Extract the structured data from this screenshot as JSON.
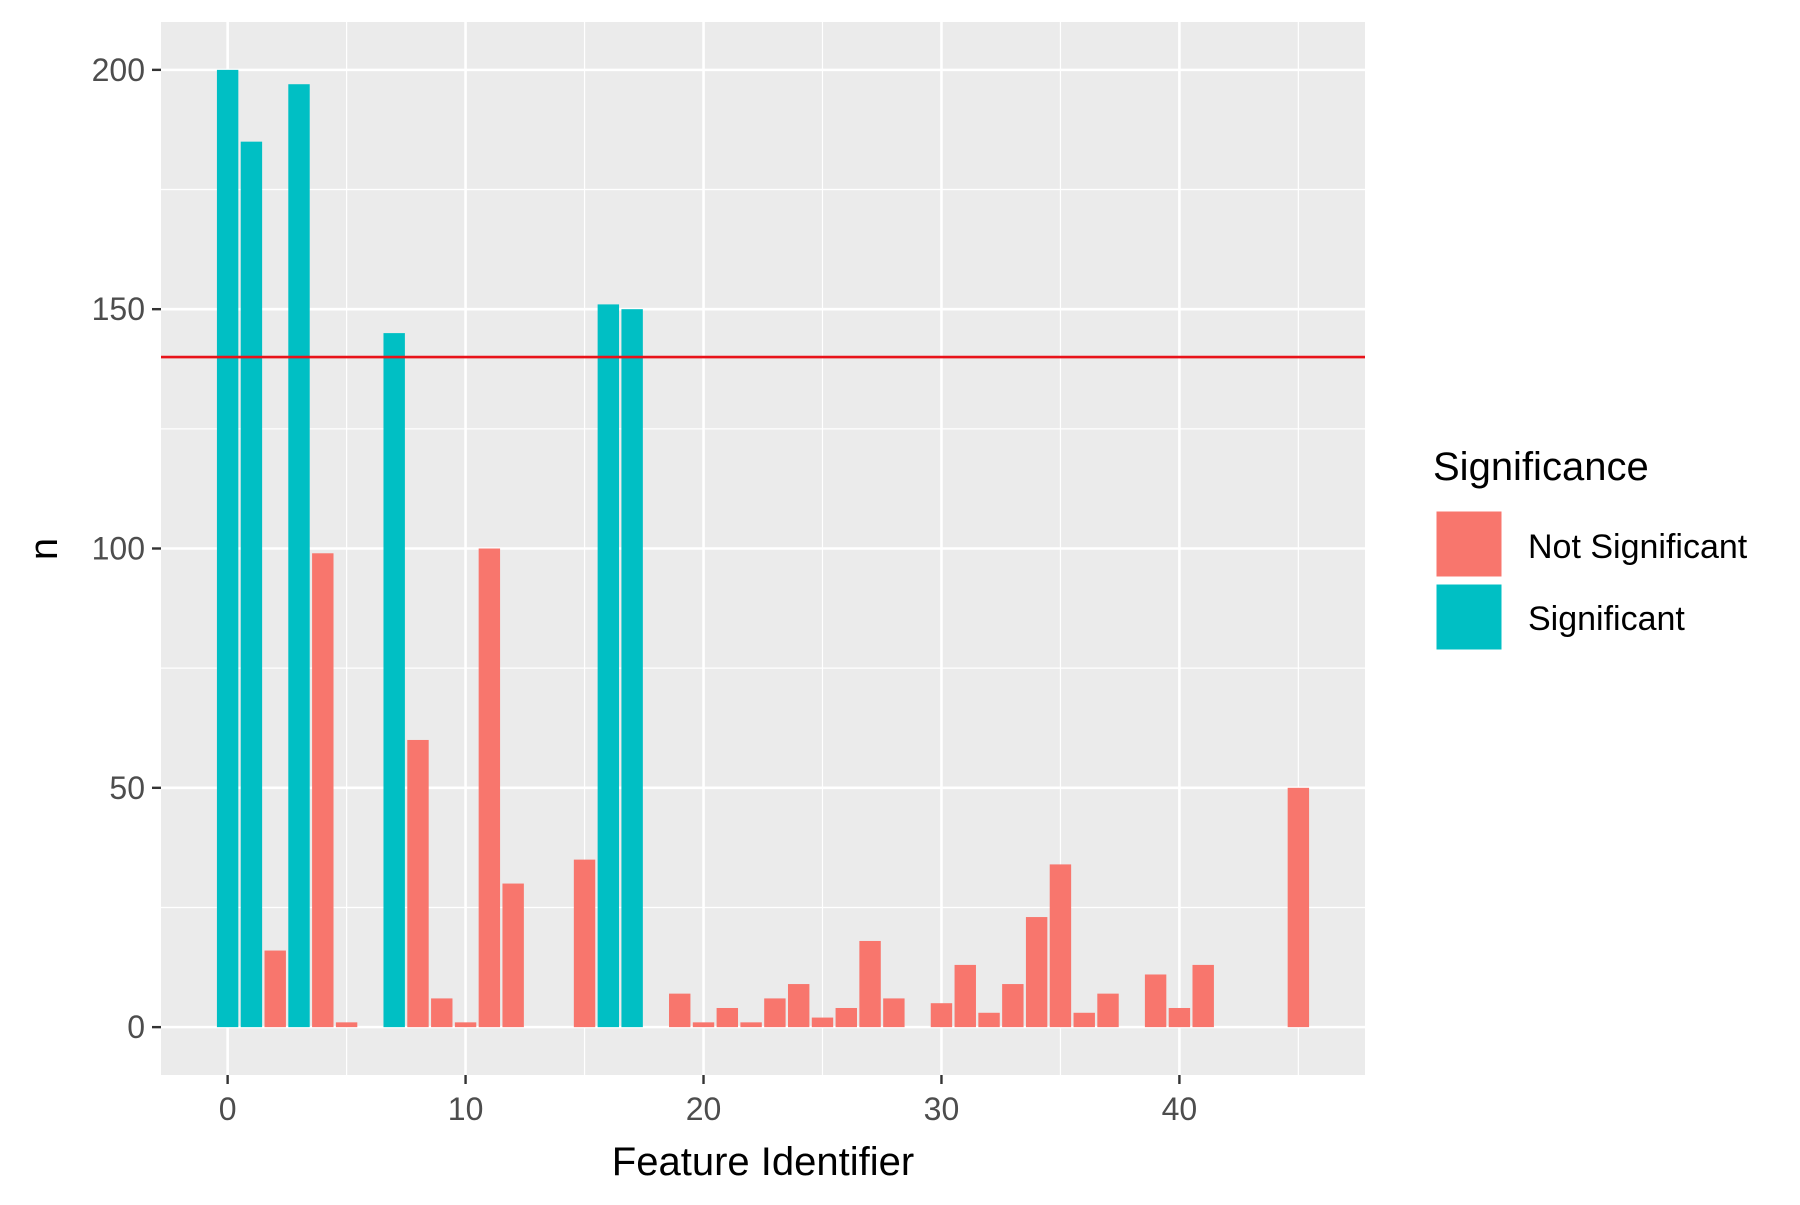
{
  "chart_data": {
    "type": "bar",
    "title": "",
    "xlabel": "Feature Identifier",
    "ylabel": "n",
    "xlim": [
      -2.8,
      47.8
    ],
    "ylim": [
      -10,
      210
    ],
    "x_ticks": [
      0,
      10,
      20,
      30,
      40
    ],
    "y_ticks": [
      0,
      50,
      100,
      150,
      200
    ],
    "grid": true,
    "threshold": {
      "value": 140,
      "color": "#E8131A"
    },
    "legend": {
      "title": "Significance",
      "position": "right",
      "entries": [
        {
          "label": "Not Significant",
          "color": "#F8766D"
        },
        {
          "label": "Significant",
          "color": "#00BFC4"
        }
      ]
    },
    "series": [
      {
        "name": "Not Significant",
        "color": "#F8766D",
        "x": [
          2,
          4,
          5,
          8,
          9,
          10,
          11,
          12,
          15,
          19,
          20,
          21,
          22,
          23,
          24,
          25,
          26,
          27,
          28,
          30,
          31,
          32,
          33,
          34,
          35,
          36,
          37,
          39,
          40,
          41,
          45
        ],
        "values": [
          16,
          99,
          1,
          60,
          6,
          1,
          100,
          30,
          35,
          7,
          1,
          4,
          1,
          6,
          9,
          2,
          4,
          18,
          6,
          5,
          13,
          3,
          9,
          23,
          34,
          3,
          7,
          11,
          4,
          13,
          50
        ]
      },
      {
        "name": "Significant",
        "color": "#00BFC4",
        "x": [
          0,
          1,
          3,
          7,
          16,
          17
        ],
        "values": [
          200,
          185,
          197,
          145,
          151,
          150
        ]
      }
    ]
  }
}
